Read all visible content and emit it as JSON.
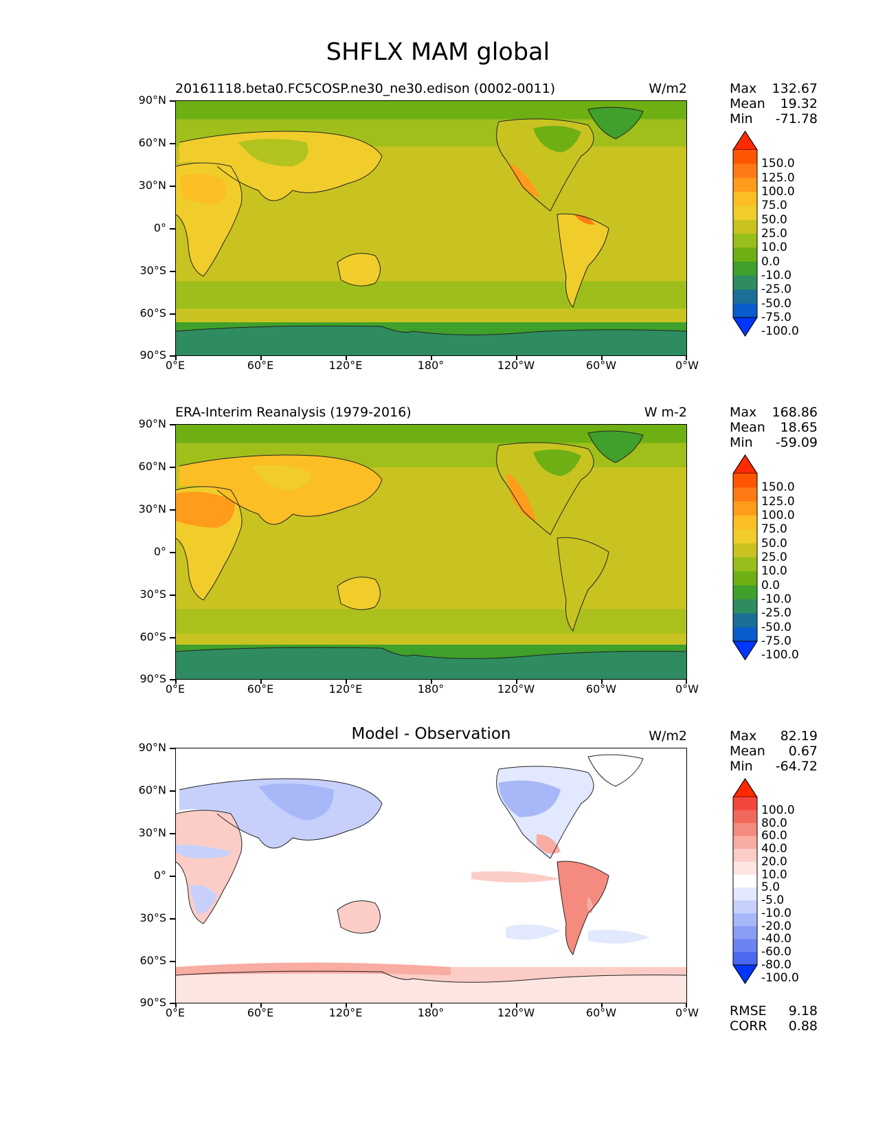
{
  "figure_title": "SHFLX MAM global",
  "lat_labels": [
    "90°N",
    "60°N",
    "30°N",
    "0°",
    "30°S",
    "60°S",
    "90°S"
  ],
  "lon_labels": [
    "0°E",
    "60°E",
    "120°E",
    "180°",
    "120°W",
    "60°W",
    "0°W"
  ],
  "stat_labels": {
    "max": "Max",
    "mean": "Mean",
    "min": "Min",
    "rmse": "RMSE",
    "corr": "CORR"
  },
  "panels": [
    {
      "title": "20161118.beta0.FC5COSP.ne30_ne30.edison (0002-0011)",
      "units": "W/m2",
      "max": "132.67",
      "mean": "19.32",
      "min": "-71.78",
      "colorbar": {
        "levels": [
          "150.0",
          "125.0",
          "100.0",
          "75.0",
          "50.0",
          "25.0",
          "10.0",
          "0.0",
          "-10.0",
          "-25.0",
          "-50.0",
          "-75.0",
          "-100.0"
        ],
        "colors": [
          "#ff2a00",
          "#ff5500",
          "#ff7a14",
          "#ff9c1c",
          "#fbbe25",
          "#f1cd2c",
          "#c9c322",
          "#97be1a",
          "#6eb014",
          "#3fa02b",
          "#2e8c60",
          "#1b6f95",
          "#0a5ccc",
          "#0036ff"
        ]
      }
    },
    {
      "title": "ERA-Interim Reanalysis (1979-2016)",
      "units": "W m-2",
      "max": "168.86",
      "mean": "18.65",
      "min": "-59.09",
      "colorbar": {
        "levels": [
          "150.0",
          "125.0",
          "100.0",
          "75.0",
          "50.0",
          "25.0",
          "10.0",
          "0.0",
          "-10.0",
          "-25.0",
          "-50.0",
          "-75.0",
          "-100.0"
        ],
        "colors": [
          "#ff2a00",
          "#ff5500",
          "#ff7a14",
          "#ff9c1c",
          "#fbbe25",
          "#f1cd2c",
          "#c9c322",
          "#97be1a",
          "#6eb014",
          "#3fa02b",
          "#2e8c60",
          "#1b6f95",
          "#0a5ccc",
          "#0036ff"
        ]
      }
    },
    {
      "title": "Model - Observation",
      "units": "W/m2",
      "max": "82.19",
      "mean": "0.67",
      "min": "-64.72",
      "rmse": "9.18",
      "corr": "0.88",
      "colorbar": {
        "levels": [
          "100.0",
          "80.0",
          "60.0",
          "40.0",
          "20.0",
          "10.0",
          "5.0",
          "-5.0",
          "-10.0",
          "-20.0",
          "-40.0",
          "-60.0",
          "-80.0",
          "-100.0"
        ],
        "colors": [
          "#ff2a00",
          "#f2463c",
          "#f3685c",
          "#f58a7e",
          "#f8aca2",
          "#fbcdc6",
          "#fde6e2",
          "#ffffff",
          "#e2e8fd",
          "#c6d0fb",
          "#a7b7f8",
          "#8a9df5",
          "#6c84f2",
          "#4b68f0",
          "#0036ff"
        ]
      }
    }
  ]
}
